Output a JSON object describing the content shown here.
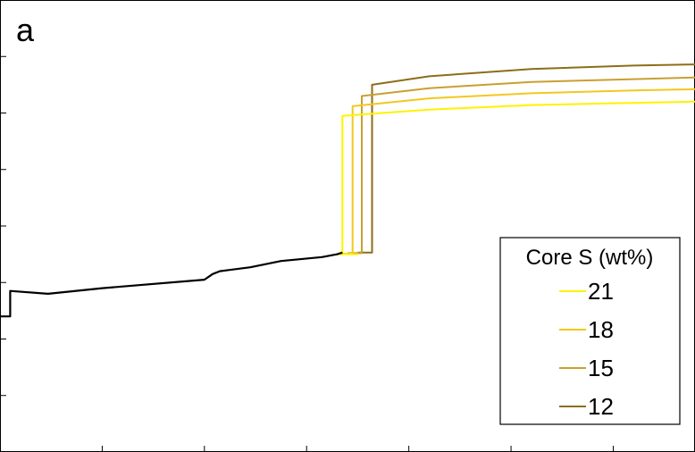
{
  "panel_label": "a",
  "legend": {
    "title": "Core S (wt%)",
    "entries": [
      {
        "label": "21",
        "color": "#FFF200"
      },
      {
        "label": "18",
        "color": "#F2C81E"
      },
      {
        "label": "15",
        "color": "#C8A030"
      },
      {
        "label": "12",
        "color": "#8C6E18"
      }
    ]
  },
  "chart_data": {
    "type": "line",
    "title": "",
    "xlabel": "",
    "ylabel": "",
    "xlim": [
      0,
      6.8
    ],
    "ylim": [
      0,
      8
    ],
    "grid": false,
    "legend_position": "bottom-right",
    "shared_series": {
      "color": "#000000",
      "x": [
        0,
        0.1,
        0.1,
        0.47,
        1.0,
        2.0,
        2.08,
        2.15,
        2.45,
        2.75,
        3.15,
        3.3,
        3.35
      ],
      "y": [
        2.4,
        2.4,
        2.85,
        2.8,
        2.9,
        3.05,
        3.15,
        3.2,
        3.27,
        3.38,
        3.45,
        3.5,
        3.53
      ]
    },
    "series": [
      {
        "name": "21",
        "color": "#FFF200",
        "x": [
          3.3,
          3.5,
          3.5,
          3.35,
          3.35,
          4.2,
          5.2,
          6.2,
          6.8
        ],
        "y": [
          3.5,
          3.5,
          3.5,
          3.5,
          5.95,
          6.06,
          6.14,
          6.18,
          6.2
        ]
      },
      {
        "name": "18",
        "color": "#F2C81E",
        "x": [
          3.3,
          3.45,
          3.45,
          4.2,
          5.2,
          6.2,
          6.8
        ],
        "y": [
          3.51,
          3.51,
          6.12,
          6.26,
          6.35,
          6.4,
          6.42
        ]
      },
      {
        "name": "15",
        "color": "#C8A030",
        "x": [
          3.4,
          3.54,
          3.54,
          4.2,
          5.2,
          6.2,
          6.8
        ],
        "y": [
          3.52,
          3.52,
          6.3,
          6.44,
          6.55,
          6.6,
          6.63
        ]
      },
      {
        "name": "12",
        "color": "#8C6E18",
        "x": [
          3.5,
          3.64,
          3.64,
          4.2,
          5.2,
          6.2,
          6.8
        ],
        "y": [
          3.53,
          3.53,
          6.5,
          6.65,
          6.78,
          6.84,
          6.86
        ]
      }
    ]
  }
}
